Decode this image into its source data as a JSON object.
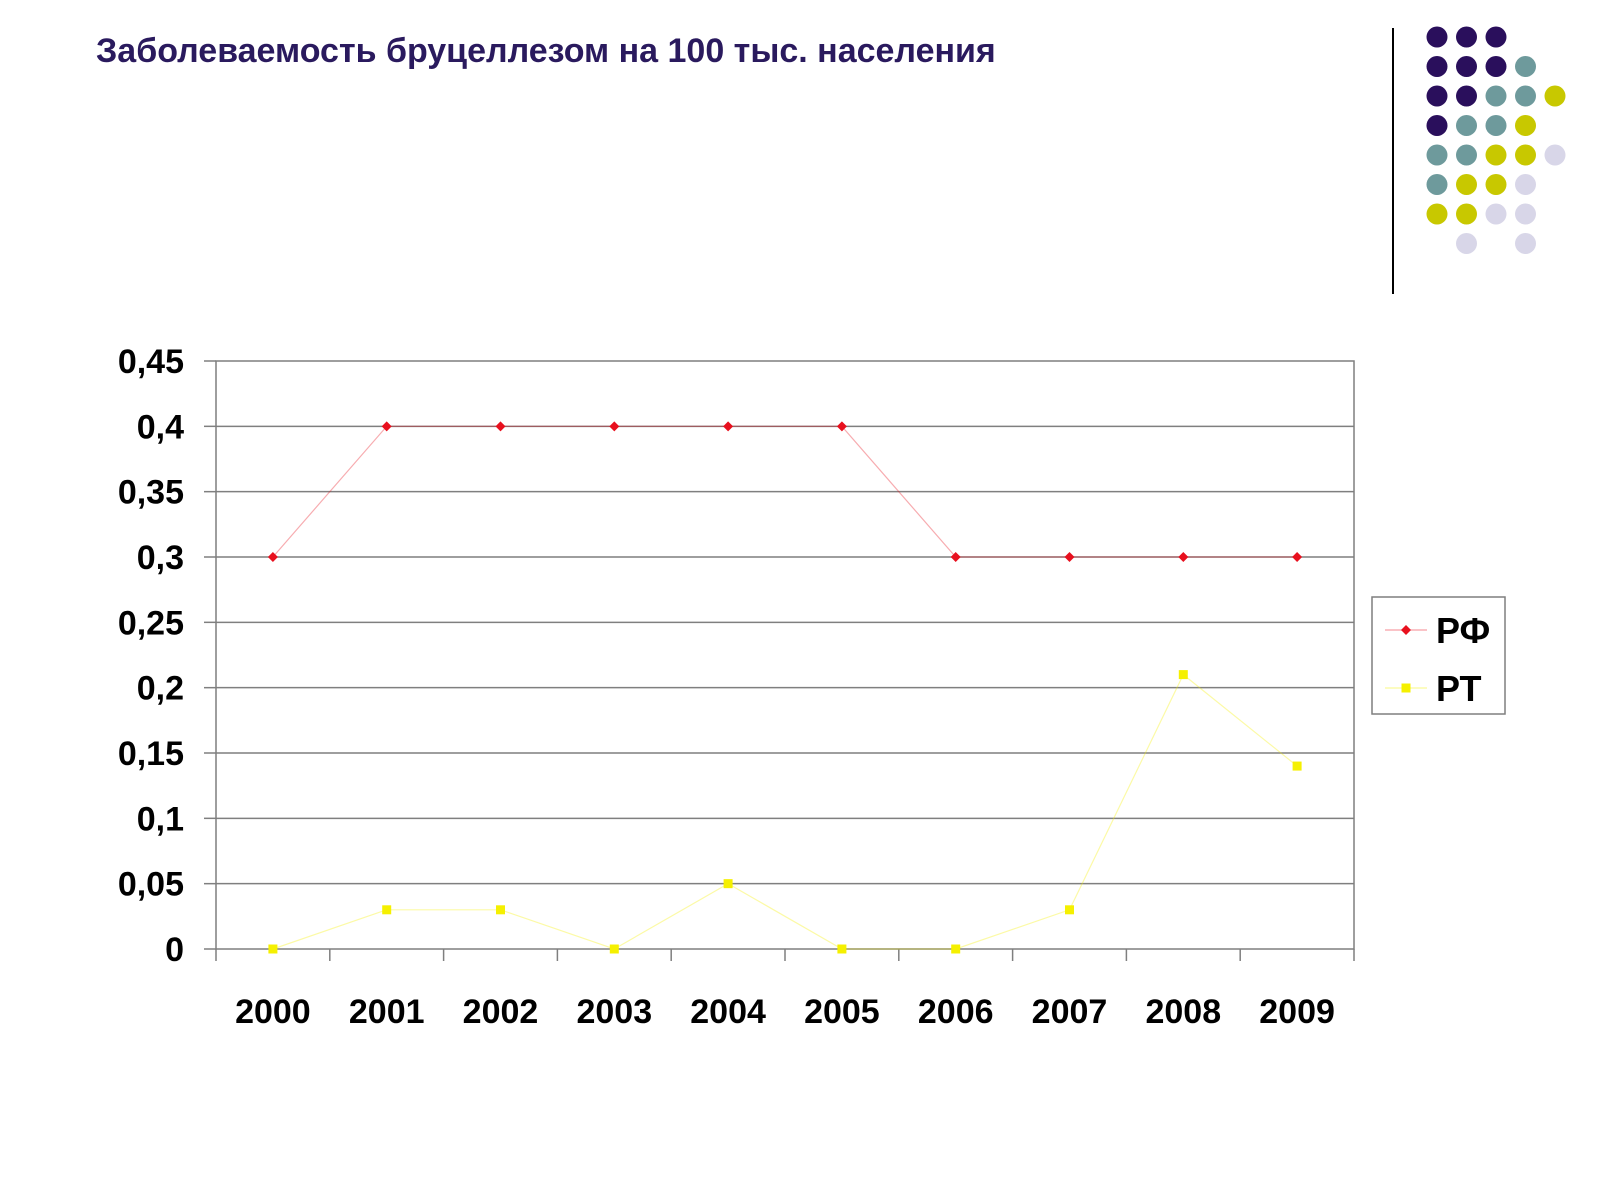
{
  "slide": {
    "title": "Заболеваемость бруцеллезом на 100 тыс. населения"
  },
  "decoration": {
    "dot_colors": {
      "purple": "#2a0f5c",
      "teal": "#6e9a9c",
      "olive": "#c8c800",
      "lavender": "#d8d6e8"
    },
    "dot_grid": [
      [
        "purple",
        "purple",
        "purple",
        "",
        ""
      ],
      [
        "purple",
        "purple",
        "purple",
        "teal",
        ""
      ],
      [
        "purple",
        "purple",
        "teal",
        "teal",
        "olive"
      ],
      [
        "purple",
        "teal",
        "teal",
        "olive",
        ""
      ],
      [
        "teal",
        "teal",
        "olive",
        "olive",
        "lavender"
      ],
      [
        "teal",
        "olive",
        "olive",
        "lavender",
        ""
      ],
      [
        "olive",
        "olive",
        "lavender",
        "lavender",
        ""
      ],
      [
        "",
        "lavender",
        "",
        "lavender",
        ""
      ]
    ]
  },
  "chart_data": {
    "type": "line",
    "title": "",
    "xlabel": "",
    "ylabel": "",
    "categories": [
      "2000",
      "2001",
      "2002",
      "2003",
      "2004",
      "2005",
      "2006",
      "2007",
      "2008",
      "2009"
    ],
    "ylim": [
      0,
      0.45
    ],
    "yticks": [
      "0",
      "0,05",
      "0,1",
      "0,15",
      "0,2",
      "0,25",
      "0,3",
      "0,35",
      "0,4",
      "0,45"
    ],
    "grid": true,
    "legend_position": "right",
    "series": [
      {
        "name": "РФ",
        "color": "#e8101e",
        "marker": "diamond",
        "values": [
          0.3,
          0.4,
          0.4,
          0.4,
          0.4,
          0.4,
          0.3,
          0.3,
          0.3,
          0.3
        ]
      },
      {
        "name": "РТ",
        "color": "#f5f000",
        "marker": "square",
        "values": [
          0,
          0.03,
          0.03,
          0,
          0.05,
          0,
          0,
          0.03,
          0.21,
          0.14
        ]
      }
    ]
  }
}
